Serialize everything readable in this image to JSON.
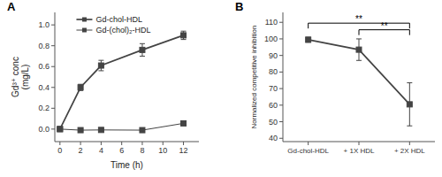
{
  "chart_data": [
    {
      "type": "line",
      "annotations": [
        "A"
      ],
      "xlabel": "Time (h)",
      "ylabel": "Gd³⁺ conc\n(mg/L)",
      "x": [
        0,
        2,
        4,
        8,
        12
      ],
      "series": [
        {
          "name": "Gd-chol-HDL",
          "color": "#444444",
          "marker": "square",
          "line_style": "solid",
          "values": [
            0.0,
            0.4,
            0.61,
            0.76,
            0.9
          ],
          "errors": [
            0.01,
            0.03,
            0.05,
            0.06,
            0.04
          ]
        },
        {
          "name": "Gd-(chol)₂-HDL",
          "color": "#444444",
          "marker": "square",
          "line_style": "solid",
          "values": [
            0.0,
            -0.01,
            -0.008,
            -0.01,
            0.055
          ],
          "errors": [
            0.005,
            0.008,
            0.008,
            0.008,
            0.012
          ]
        }
      ],
      "xlim": [
        -0.5,
        13.5
      ],
      "ylim": [
        -0.12,
        1.12
      ],
      "xticks": [
        0,
        2,
        4,
        6,
        8,
        10,
        12
      ],
      "yticks": [
        {
          "value": 0,
          "label": "0.0"
        },
        0.2,
        0.4,
        0.6,
        0.8,
        {
          "value": 1,
          "label": "1.0"
        }
      ],
      "legend": "upper left",
      "grid": false
    },
    {
      "type": "line",
      "annotations": [
        "B"
      ],
      "ylabel": "Normalized competitive inhibition",
      "categories": [
        "Gd-chol-HDL",
        "+ 1X HDL",
        "+ 2X HDL"
      ],
      "values": [
        99.5,
        93.5,
        60.5
      ],
      "errors": [
        1.5,
        6.5,
        13.0
      ],
      "color": "#444444",
      "marker": "square",
      "line_style": "solid",
      "ylim": [
        38,
        116
      ],
      "yticks": [
        40,
        50,
        60,
        70,
        80,
        90,
        100,
        110
      ],
      "grid": false,
      "significance": [
        {
          "from": "Gd-chol-HDL",
          "to": "+ 2X HDL",
          "y": 109.5,
          "text": "**"
        },
        {
          "from": "+ 1X HDL",
          "to": "+ 2X HDL",
          "y": 105.5,
          "text": "**"
        }
      ]
    }
  ]
}
